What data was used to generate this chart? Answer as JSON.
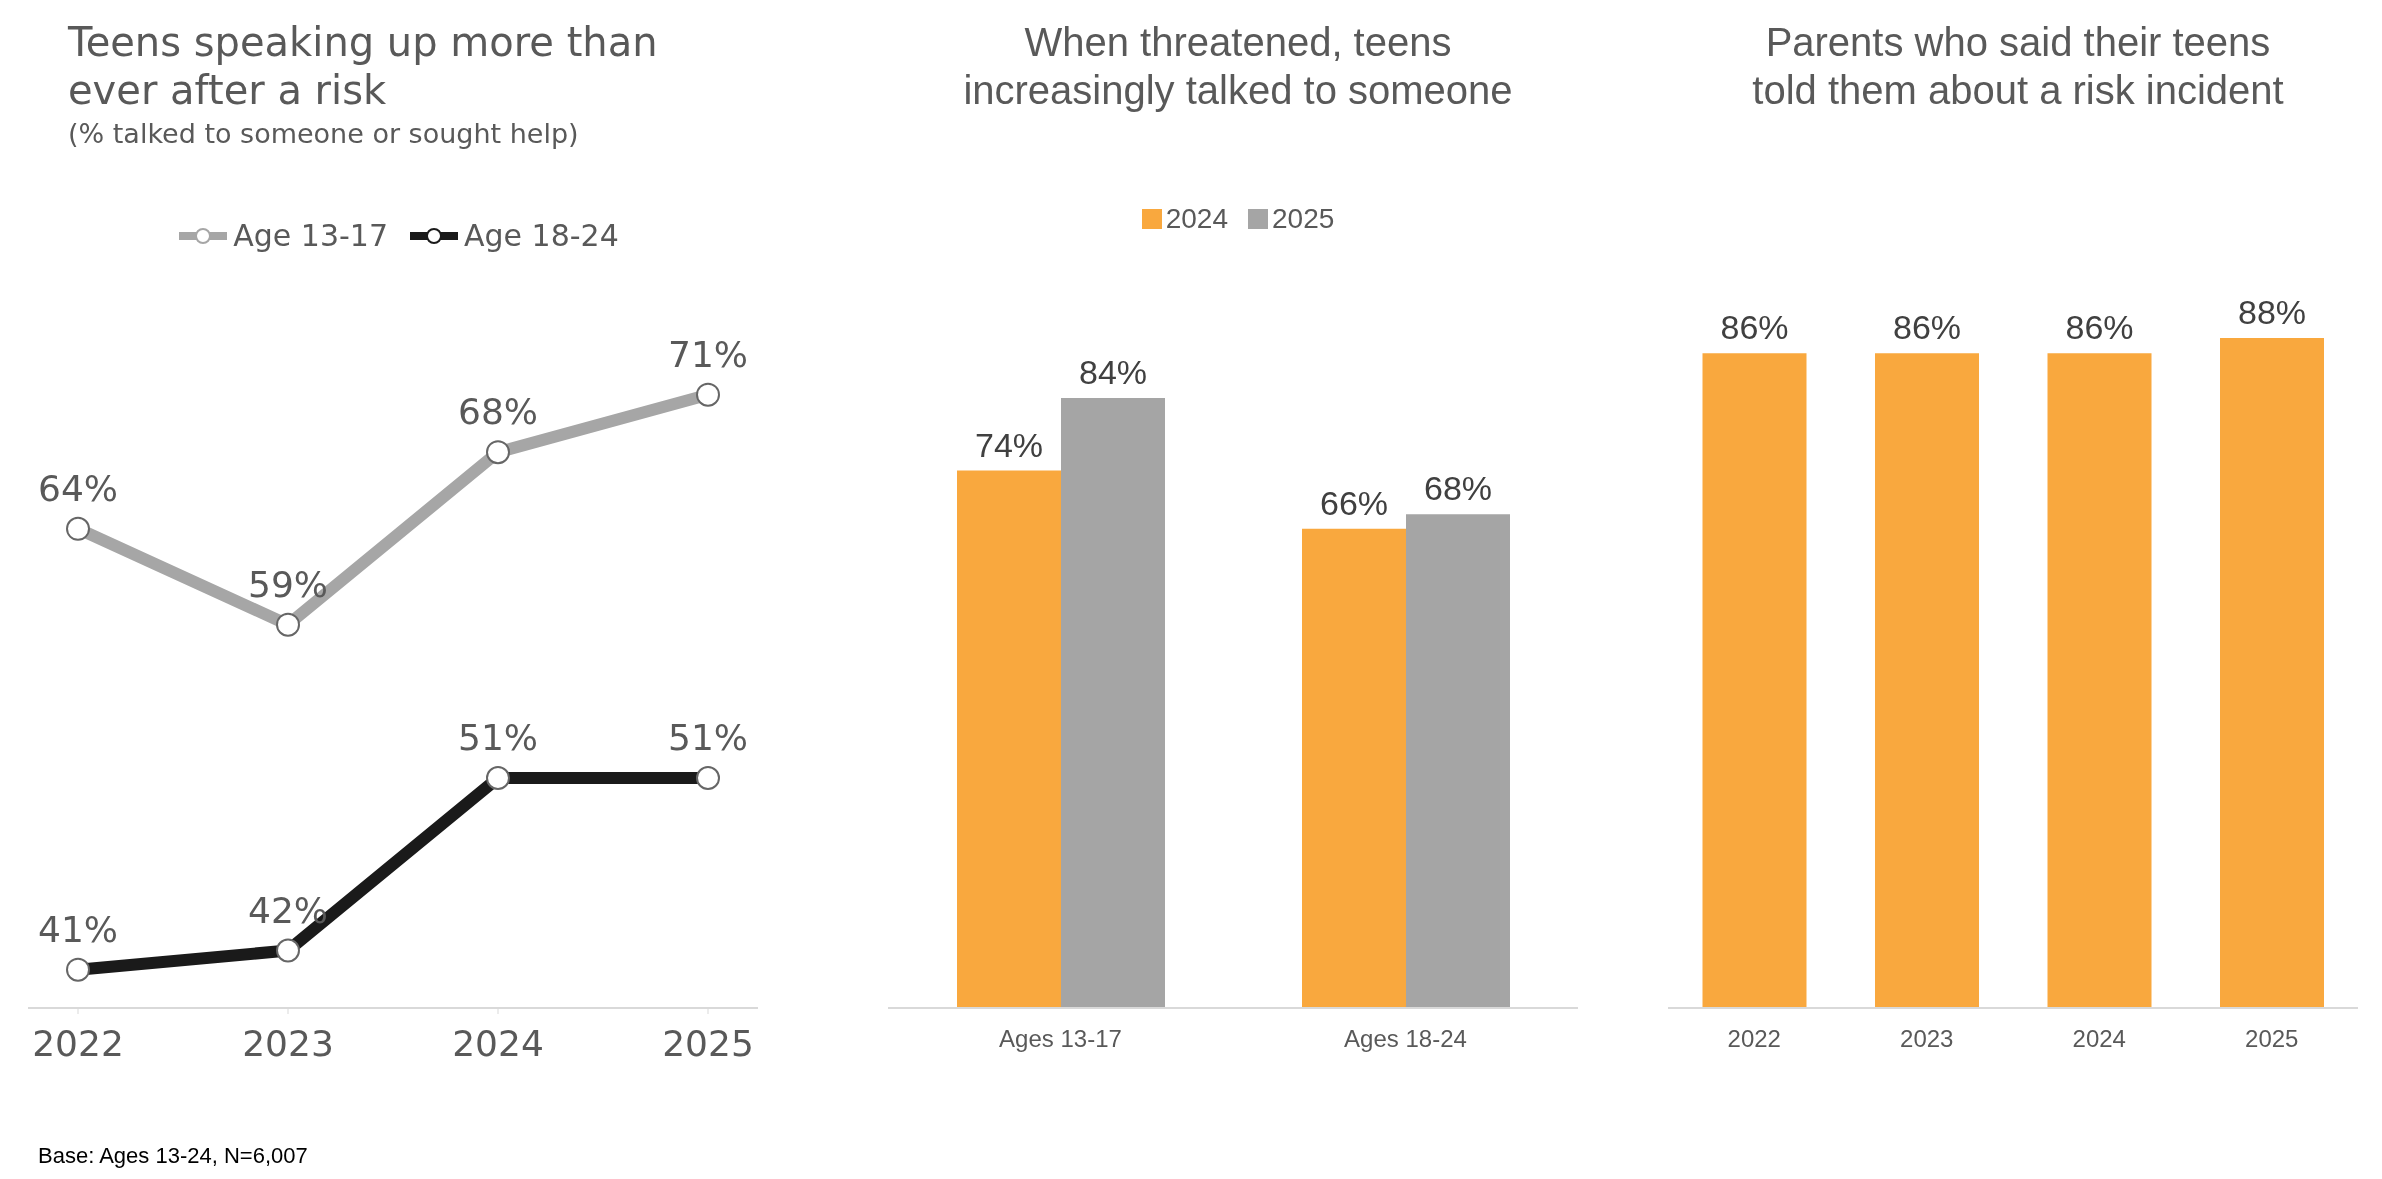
{
  "chart_data": [
    {
      "type": "line",
      "title": "Teens speaking up more than ever after a risk",
      "subtitle": "(% talked to someone or sought help)",
      "categories": [
        "2022",
        "2023",
        "2024",
        "2025"
      ],
      "series": [
        {
          "name": "Age 13-17",
          "color": "#a6a6a6",
          "values": [
            64,
            59,
            68,
            71
          ],
          "value_labels": [
            "64%",
            "59%",
            "68%",
            "71%"
          ]
        },
        {
          "name": "Age 18-24",
          "color": "#1a1a1a",
          "values": [
            41,
            42,
            51,
            51
          ],
          "value_labels": [
            "41%",
            "42%",
            "51%",
            "51%"
          ]
        }
      ],
      "marker": "circle",
      "line_style": "solid",
      "legend": "top",
      "annotations": [
        "Base: Ages 13-24, N=6,007"
      ]
    },
    {
      "type": "bar",
      "title": "When threatened, teens increasingly talked to someone",
      "categories": [
        "Ages 13-17",
        "Ages 18-24"
      ],
      "series": [
        {
          "name": "2024",
          "color": "#f9a83e",
          "values": [
            74,
            66
          ],
          "value_labels": [
            "74%",
            "66%"
          ]
        },
        {
          "name": "2025",
          "color": "#a5a5a5",
          "values": [
            84,
            68
          ],
          "value_labels": [
            "84%",
            "68%"
          ]
        }
      ],
      "legend": "top"
    },
    {
      "type": "bar",
      "title": "Parents who said their teens told them about a risk incident",
      "categories": [
        "2022",
        "2023",
        "2024",
        "2025"
      ],
      "series": [
        {
          "color": "#f9a83e",
          "values": [
            86,
            86,
            86,
            88
          ],
          "value_labels": [
            "86%",
            "86%",
            "86%",
            "88%"
          ]
        }
      ]
    }
  ]
}
